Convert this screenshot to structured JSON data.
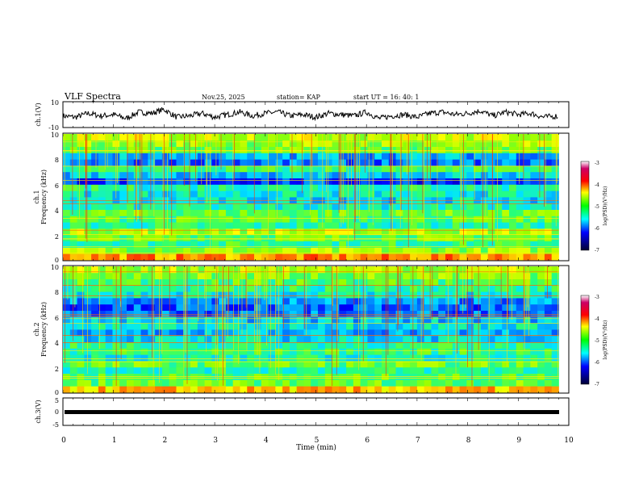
{
  "header": {
    "title": "VLF Spectra",
    "date": "Nov.25, 2025",
    "station": "station= KAP",
    "start": "start  UT =   16: 40: 1"
  },
  "colors": {
    "spectral_scale": [
      "#1a0066",
      "#0000ff",
      "#0099ff",
      "#00ffff",
      "#66ff66",
      "#ccff00",
      "#ffff00",
      "#ff8800",
      "#ff0000",
      "#cc0066",
      "#ffffff"
    ],
    "trace": "#000000"
  },
  "chart_data": [
    {
      "type": "line",
      "name": "ch.1 waveform",
      "ylabel": "ch.1(V)",
      "ylim": [
        -10,
        10
      ],
      "yticks": [
        "10",
        "-10"
      ],
      "xlim": [
        0,
        10
      ],
      "x": [
        0.0,
        0.25,
        0.5,
        0.75,
        1.0,
        1.25,
        1.5,
        1.75,
        2.0,
        2.25,
        2.5,
        2.75,
        3.0,
        3.25,
        3.5,
        3.75,
        4.0,
        4.25,
        4.5,
        4.75,
        5.0,
        5.25,
        5.5,
        5.75,
        6.0,
        6.25,
        6.5,
        6.75,
        7.0,
        7.25,
        7.5,
        7.75,
        8.0,
        8.25,
        8.5,
        8.75,
        9.0,
        9.25,
        9.5,
        9.8
      ],
      "y": [
        -1,
        -2,
        1,
        -1,
        0,
        -3,
        2,
        1,
        4,
        -2,
        -1,
        1,
        -2,
        0,
        2,
        -1,
        1,
        2,
        -1,
        0,
        -2,
        1,
        0,
        -1,
        2,
        -3,
        -1,
        0,
        -2,
        1,
        2,
        0,
        1,
        3,
        -1,
        2,
        0,
        1,
        -2,
        -1
      ]
    },
    {
      "type": "heatmap",
      "name": "ch.1 spectrogram",
      "ylabel": "ch.1",
      "ylabel2": "Frequency  (kHz)",
      "ylim": [
        0,
        10
      ],
      "yticks": [
        "0",
        "2",
        "4",
        "6",
        "8",
        "10"
      ],
      "xlim": [
        0,
        9.8
      ],
      "freq_bands_khz": [
        0,
        0.5,
        1,
        1.5,
        2,
        2.5,
        3,
        3.5,
        4,
        4.5,
        5,
        5.5,
        6,
        6.5,
        7,
        7.5,
        8,
        8.5,
        9,
        9.5,
        10
      ],
      "log_psd": [
        -4.0,
        -4.8,
        -5.2,
        -5.0,
        -4.7,
        -5.3,
        -5.1,
        -5.0,
        -5.4,
        -5.6,
        -5.5,
        -5.3,
        -6.2,
        -5.7,
        -5.2,
        -6.0,
        -5.8,
        -5.0,
        -4.8,
        -4.6
      ],
      "colorbar_label": "log(PSD)(V²/Hz)",
      "colorbar_ticks": [
        "-3",
        "-4",
        "-5",
        "-6",
        "-7"
      ]
    },
    {
      "type": "heatmap",
      "name": "ch.2 spectrogram",
      "ylabel": "ch.2",
      "ylabel2": "Frequency  (kHz)",
      "ylim": [
        0,
        10
      ],
      "yticks": [
        "0",
        "2",
        "4",
        "6",
        "8",
        "10"
      ],
      "xlim": [
        0,
        9.8
      ],
      "freq_bands_khz": [
        0,
        0.5,
        1,
        1.5,
        2,
        2.5,
        3,
        3.5,
        4,
        4.5,
        5,
        5.5,
        6,
        6.5,
        7,
        7.5,
        8,
        8.5,
        9,
        9.5,
        10
      ],
      "log_psd": [
        -4.2,
        -5.0,
        -5.1,
        -5.3,
        -5.0,
        -5.4,
        -5.2,
        -5.3,
        -5.6,
        -5.8,
        -5.5,
        -5.7,
        -6.0,
        -6.1,
        -5.9,
        -5.5,
        -5.3,
        -5.1,
        -4.9,
        -4.7
      ],
      "colorbar_label": "log(PSD)(V²/Hz)",
      "colorbar_ticks": [
        "-3",
        "-4",
        "-5",
        "-6",
        "-7"
      ]
    },
    {
      "type": "line",
      "name": "ch.3 waveform",
      "ylabel": "ch.3(V)",
      "ylim": [
        -5,
        5
      ],
      "yticks": [
        "5",
        "0",
        "-5"
      ],
      "xlim": [
        0,
        10
      ],
      "x": [
        0,
        9.8
      ],
      "y": [
        0,
        0
      ]
    }
  ],
  "xaxis": {
    "label": "Time  (min)",
    "ticks": [
      "0",
      "1",
      "2",
      "3",
      "4",
      "5",
      "6",
      "7",
      "8",
      "9",
      "10"
    ]
  }
}
